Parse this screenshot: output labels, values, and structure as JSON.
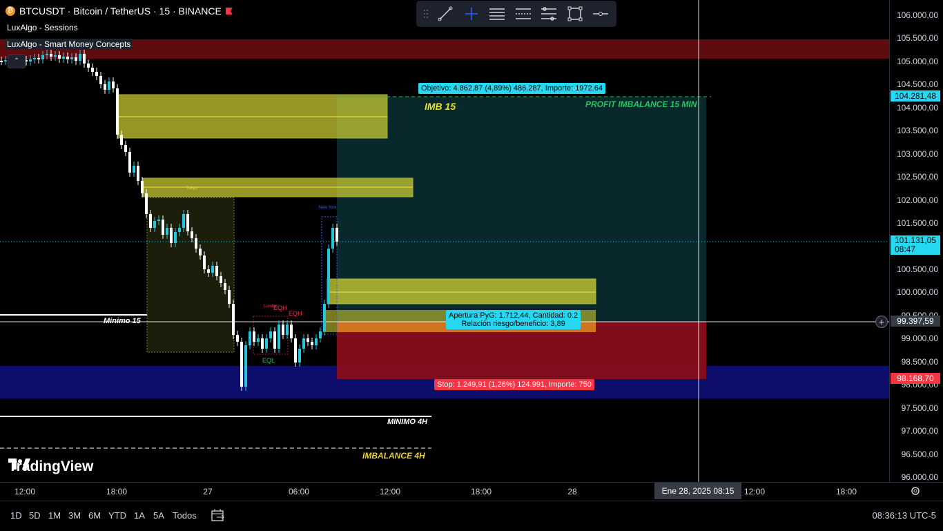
{
  "header": {
    "symbol": "BTCUSDT · Bitcoin / TetherUS · 15 · BINANCE",
    "indicators": [
      "LuxAlgo - Sessions",
      "LuxAlgo - Smart Money Concepts"
    ]
  },
  "toolbar": {
    "tools": [
      "drag-handle-icon",
      "trend-line-icon",
      "crosshair-icon",
      "parallel-channel-icon",
      "fib-icon",
      "regression-icon",
      "rectangle-icon",
      "horizontal-line-icon"
    ]
  },
  "price_axis": {
    "labels": [
      "106.000,00",
      "105.500,00",
      "105.000,00",
      "104.500,00",
      "104.000,00",
      "103.500,00",
      "103.000,00",
      "102.500,00",
      "102.000,00",
      "101.500,00",
      "101.000,00",
      "100.500,00",
      "100.000,00",
      "99.500,00",
      "99.000,00",
      "98.500,00",
      "98.000,00",
      "97.500,00",
      "97.000,00",
      "96.500,00",
      "96.000,00"
    ],
    "target_tag": "104.281,48",
    "current_price": "101.131,05",
    "countdown": "08:47",
    "crosshair_price": "99.397,59",
    "stop_tag": "98.168,70"
  },
  "time_axis": {
    "labels": [
      "12:00",
      "18:00",
      "27",
      "06:00",
      "12:00",
      "18:00",
      "28",
      "12:00",
      "18:00"
    ],
    "hover_label": "Ene 28, 2025   08:15"
  },
  "chart": {
    "objective_label": "Objetivo: 4.862,87 (4,89%) 486.287, Importe: 1972.64",
    "imb_15": "IMB 15",
    "profit_imbalance": "PROFIT IMBALANCE 15 MIN",
    "entry_label_1": "Apertura PyG: 1.712,44, Cantidad: 0.2",
    "entry_label_2": "Relación riesgo/beneficio: 3,89",
    "stop_label": "Stop: 1.249,91 (1,26%) 124.991, Importe: 750",
    "minimo_15": "Minimo 15",
    "minimo_4h": "MINIMO 4H",
    "imbalance_4h": "IMBALANCE 4H",
    "eqh_1": "EQH",
    "eqh_2": "EQH",
    "eql": "EQL",
    "session_tokyo": "Tokyo",
    "session_newyork": "New York",
    "session_london": "London",
    "logo_text": "TradingView"
  },
  "bottom_bar": {
    "ranges": [
      "1D",
      "5D",
      "1M",
      "3M",
      "6M",
      "YTD",
      "1A",
      "5A",
      "Todos"
    ],
    "clock": "08:36:13 UTC-5"
  },
  "colors": {
    "up": "#26c6da",
    "down": "#ffffff",
    "target_zone": "#0a2a2d",
    "stop_zone": "#880e1b",
    "imbalance": "#c8c832",
    "supply": "#5e0c10",
    "demand": "#0d0d6b",
    "accent_cyan": "#26d7f0",
    "accent_red": "#f23645"
  }
}
